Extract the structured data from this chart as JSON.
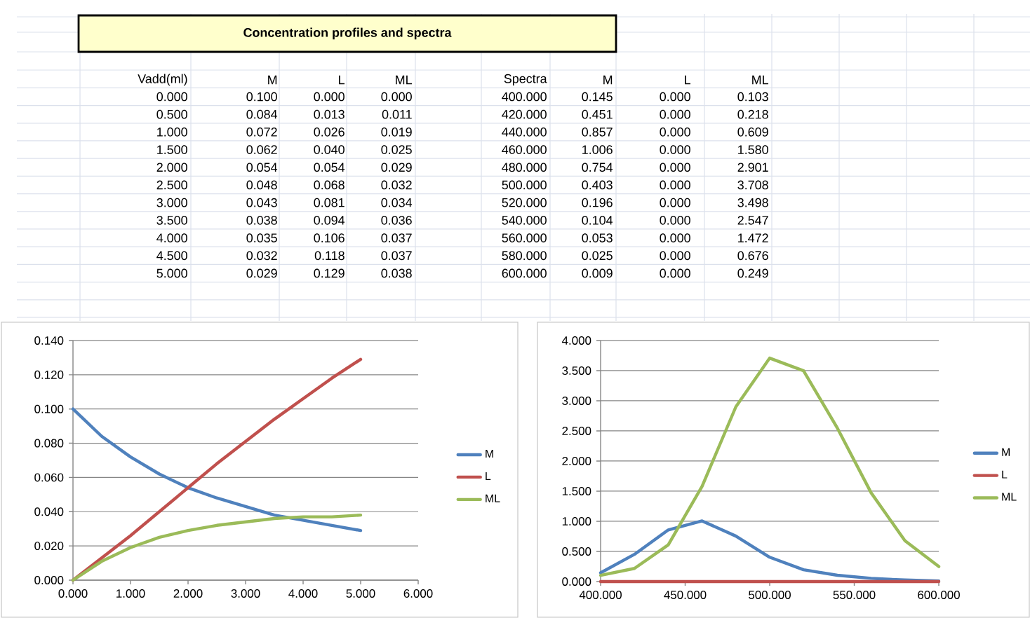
{
  "chart_data": [
    {
      "type": "heatmap",
      "title": "Concentration profiles and spectra",
      "ylabel": "Vadd(ml)",
      "categories": [
        "M",
        "L",
        "ML"
      ],
      "y_categories": [
        "0.000",
        "0.500",
        "1.000",
        "1.500",
        "2.000",
        "2.500",
        "3.000",
        "3.500",
        "4.000",
        "4.500",
        "5.000"
      ],
      "cells": [
        [
          null,
          null,
          null
        ],
        [
          null,
          null,
          null
        ],
        [
          null,
          null,
          null
        ],
        [
          null,
          null,
          null
        ],
        [
          null,
          null,
          null
        ],
        [
          null,
          null,
          null
        ],
        [
          null,
          null,
          null
        ],
        [
          null,
          null,
          null
        ],
        [
          null,
          null,
          null
        ],
        [
          null,
          null,
          null
        ],
        [
          null,
          null,
          null
        ]
      ],
      "cell_labels": [
        [
          "0.100",
          "0.000",
          "0.000"
        ],
        [
          "0.084",
          "0.013",
          "0.011"
        ],
        [
          "0.072",
          "0.026",
          "0.019"
        ],
        [
          "0.062",
          "0.040",
          "0.025"
        ],
        [
          "0.054",
          "0.054",
          "0.029"
        ],
        [
          "0.048",
          "0.068",
          "0.032"
        ],
        [
          "0.043",
          "0.081",
          "0.034"
        ],
        [
          "0.038",
          "0.094",
          "0.036"
        ],
        [
          "0.035",
          "0.106",
          "0.037"
        ],
        [
          "0.032",
          "0.118",
          "0.037"
        ],
        [
          "0.029",
          "0.129",
          "0.038"
        ]
      ]
    },
    {
      "type": "heatmap",
      "ylabel": "Spectra",
      "categories": [
        "M",
        "L",
        "ML"
      ],
      "y_categories": [
        "400.000",
        "420.000",
        "440.000",
        "460.000",
        "480.000",
        "500.000",
        "520.000",
        "540.000",
        "560.000",
        "580.000",
        "600.000"
      ],
      "cells": [
        [
          null,
          null,
          null
        ],
        [
          null,
          null,
          null
        ],
        [
          null,
          null,
          null
        ],
        [
          null,
          null,
          null
        ],
        [
          null,
          null,
          null
        ],
        [
          null,
          null,
          null
        ],
        [
          null,
          null,
          null
        ],
        [
          null,
          null,
          null
        ],
        [
          null,
          null,
          null
        ],
        [
          null,
          null,
          null
        ],
        [
          null,
          null,
          null
        ]
      ],
      "cell_labels": [
        [
          "0.145",
          "0.000",
          "0.103"
        ],
        [
          "0.451",
          "0.000",
          "0.218"
        ],
        [
          "0.857",
          "0.000",
          "0.609"
        ],
        [
          "1.006",
          "0.000",
          "1.580"
        ],
        [
          "0.754",
          "0.000",
          "2.901"
        ],
        [
          "0.403",
          "0.000",
          "3.708"
        ],
        [
          "0.196",
          "0.000",
          "3.498"
        ],
        [
          "0.104",
          "0.000",
          "2.547"
        ],
        [
          "0.053",
          "0.000",
          "1.472"
        ],
        [
          "0.025",
          "0.000",
          "0.676"
        ],
        [
          "0.009",
          "0.000",
          "0.249"
        ]
      ]
    },
    {
      "type": "line",
      "x": [
        0,
        0.5,
        1,
        1.5,
        2,
        2.5,
        3,
        3.5,
        4,
        4.5,
        5
      ],
      "series": [
        {
          "name": "M",
          "color": "#4f81bd",
          "values": [
            0.1,
            0.084,
            0.072,
            0.062,
            0.054,
            0.048,
            0.043,
            0.038,
            0.035,
            0.032,
            0.029
          ]
        },
        {
          "name": "L",
          "color": "#c0504d",
          "values": [
            0,
            0.013,
            0.026,
            0.04,
            0.054,
            0.068,
            0.081,
            0.094,
            0.106,
            0.118,
            0.129
          ]
        },
        {
          "name": "ML",
          "color": "#9bbb59",
          "values": [
            0,
            0.011,
            0.019,
            0.025,
            0.029,
            0.032,
            0.034,
            0.036,
            0.037,
            0.037,
            0.038
          ]
        }
      ],
      "xlim": [
        0,
        6
      ],
      "xticks": [
        {
          "value": 0,
          "label": "0.000"
        },
        {
          "value": 1,
          "label": "1.000"
        },
        {
          "value": 2,
          "label": "2.000"
        },
        {
          "value": 3,
          "label": "3.000"
        },
        {
          "value": 4,
          "label": "4.000"
        },
        {
          "value": 5,
          "label": "5.000"
        },
        {
          "value": 6,
          "label": "6.000"
        }
      ],
      "ylim": [
        0,
        0.14
      ],
      "yticks": [
        {
          "value": 0,
          "label": "0.000"
        },
        {
          "value": 0.02,
          "label": "0.020"
        },
        {
          "value": 0.04,
          "label": "0.040"
        },
        {
          "value": 0.06,
          "label": "0.060"
        },
        {
          "value": 0.08,
          "label": "0.080"
        },
        {
          "value": 0.1,
          "label": "0.100"
        },
        {
          "value": 0.12,
          "label": "0.120"
        },
        {
          "value": 0.14,
          "label": "0.140"
        }
      ],
      "grid": "y",
      "legend": "right"
    },
    {
      "type": "line",
      "x": [
        400,
        420,
        440,
        460,
        480,
        500,
        520,
        540,
        560,
        580,
        600
      ],
      "series": [
        {
          "name": "M",
          "color": "#4f81bd",
          "values": [
            0.145,
            0.451,
            0.857,
            1.006,
            0.754,
            0.403,
            0.196,
            0.104,
            0.053,
            0.025,
            0.009
          ]
        },
        {
          "name": "L",
          "color": "#c0504d",
          "values": [
            0,
            0,
            0,
            0,
            0,
            0,
            0,
            0,
            0,
            0,
            0
          ]
        },
        {
          "name": "ML",
          "color": "#9bbb59",
          "values": [
            0.103,
            0.218,
            0.609,
            1.58,
            2.901,
            3.708,
            3.498,
            2.547,
            1.472,
            0.676,
            0.249
          ]
        }
      ],
      "xlim": [
        400,
        600
      ],
      "xticks": [
        {
          "value": 400,
          "label": "400.000"
        },
        {
          "value": 450,
          "label": "450.000"
        },
        {
          "value": 500,
          "label": "500.000"
        },
        {
          "value": 550,
          "label": "550.000"
        },
        {
          "value": 600,
          "label": "600.000"
        }
      ],
      "ylim": [
        0,
        4
      ],
      "yticks": [
        {
          "value": 0,
          "label": "0.000"
        },
        {
          "value": 0.5,
          "label": "0.500"
        },
        {
          "value": 1,
          "label": "1.000"
        },
        {
          "value": 1.5,
          "label": "1.500"
        },
        {
          "value": 2,
          "label": "2.000"
        },
        {
          "value": 2.5,
          "label": "2.500"
        },
        {
          "value": 3,
          "label": "3.000"
        },
        {
          "value": 3.5,
          "label": "3.500"
        },
        {
          "value": 4,
          "label": "4.000"
        }
      ],
      "grid": "y",
      "legend": "right"
    }
  ]
}
